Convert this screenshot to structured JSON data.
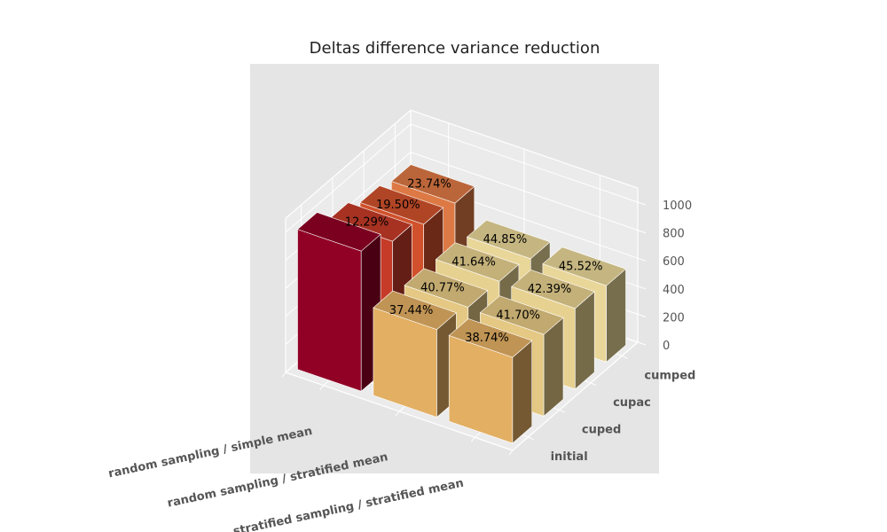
{
  "chart_data": {
    "type": "bar3d",
    "title": "Deltas difference variance reduction",
    "x_categories": [
      "random sampling / simple mean",
      "random sampling / stratified mean",
      "stratified sampling / stratified mean"
    ],
    "y_categories": [
      "initial",
      "cuped",
      "cupac",
      "cumped"
    ],
    "z_ticks": [
      0,
      200,
      400,
      600,
      800,
      1000
    ],
    "zlim": [
      0,
      1100
    ],
    "grid": true,
    "bars": [
      {
        "x": "random sampling / simple mean",
        "y": "initial",
        "value": 1000,
        "label": ""
      },
      {
        "x": "random sampling / simple mean",
        "y": "cuped",
        "value": 877,
        "label": "12.29%"
      },
      {
        "x": "random sampling / simple mean",
        "y": "cupac",
        "value": 805,
        "label": "19.50%"
      },
      {
        "x": "random sampling / simple mean",
        "y": "cumped",
        "value": 763,
        "label": "23.74%"
      },
      {
        "x": "random sampling / stratified mean",
        "y": "initial",
        "value": 626,
        "label": "37.44%"
      },
      {
        "x": "random sampling / stratified mean",
        "y": "cuped",
        "value": 592,
        "label": "40.77%"
      },
      {
        "x": "random sampling / stratified mean",
        "y": "cupac",
        "value": 584,
        "label": "41.64%"
      },
      {
        "x": "random sampling / stratified mean",
        "y": "cumped",
        "value": 552,
        "label": "44.85%"
      },
      {
        "x": "stratified sampling / stratified mean",
        "y": "initial",
        "value": 613,
        "label": "38.74%"
      },
      {
        "x": "stratified sampling / stratified mean",
        "y": "cuped",
        "value": 583,
        "label": "41.70%"
      },
      {
        "x": "stratified sampling / stratified mean",
        "y": "cupac",
        "value": 576,
        "label": "42.39%"
      },
      {
        "x": "stratified sampling / stratified mean",
        "y": "cumped",
        "value": 545,
        "label": "45.52%"
      }
    ],
    "colors": {
      "random sampling / simple mean|initial": "#9e0028",
      "random sampling / simple mean|cuped": "#d6402c",
      "random sampling / simple mean|cupac": "#e2582f",
      "random sampling / simple mean|cumped": "#f0834a",
      "random sampling / stratified mean|initial": "#f6be6c",
      "random sampling / stratified mean|cuped": "#f8d98e",
      "random sampling / stratified mean|cupac": "#fbe39c",
      "random sampling / stratified mean|cumped": "#fde9a6",
      "stratified sampling / stratified mean|initial": "#f6be6c",
      "stratified sampling / stratified mean|cuped": "#f8d98e",
      "stratified sampling / stratified mean|cupac": "#fbe39c",
      "stratified sampling / stratified mean|cumped": "#fde9a6"
    },
    "background_color": "#e5e5e5",
    "grid_color": "#ffffff"
  }
}
